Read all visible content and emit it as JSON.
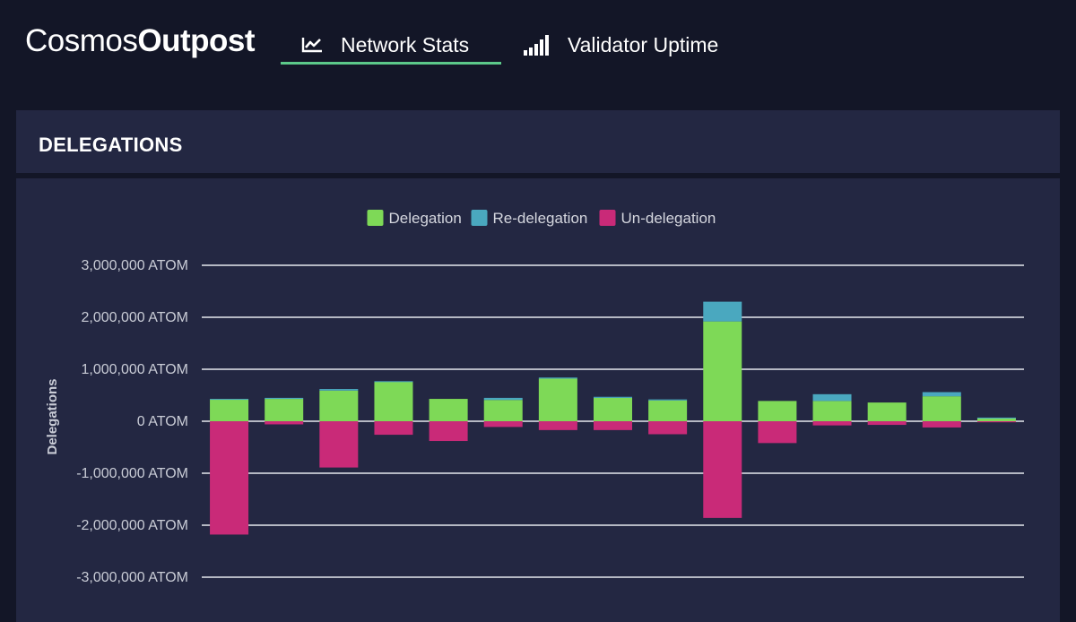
{
  "brand": {
    "part1": "Cosmos",
    "part2": "Outpost"
  },
  "nav": {
    "tabs": [
      {
        "label": "Network Stats",
        "icon": "line-chart-icon",
        "active": true
      },
      {
        "label": "Validator Uptime",
        "icon": "signal-bars-icon",
        "active": false
      }
    ],
    "accent_color": "#5cc98a"
  },
  "card": {
    "title": "DELEGATIONS"
  },
  "chart_data": {
    "type": "bar",
    "stacked": true,
    "ylabel": "Delegations",
    "ylim": [
      -3000000,
      3000000
    ],
    "y_ticks": [
      "3,000,000 ATOM",
      "2,000,000 ATOM",
      "1,000,000 ATOM",
      "0 ATOM",
      "-1,000,000 ATOM",
      "-2,000,000 ATOM",
      "-3,000,000 ATOM"
    ],
    "grid": true,
    "legend_position": "top-center",
    "series": [
      {
        "name": "Delegation",
        "color": "#7ed957",
        "values": [
          420000,
          430000,
          590000,
          760000,
          430000,
          410000,
          820000,
          450000,
          400000,
          1920000,
          390000,
          390000,
          360000,
          480000,
          60000
        ]
      },
      {
        "name": "Re-delegation",
        "color": "#4aa8bf",
        "values": [
          10000,
          20000,
          30000,
          10000,
          0,
          40000,
          20000,
          20000,
          20000,
          380000,
          0,
          130000,
          0,
          80000,
          10000
        ]
      },
      {
        "name": "Un-delegation",
        "color": "#c92a78",
        "values": [
          -2180000,
          -60000,
          -890000,
          -260000,
          -380000,
          -110000,
          -170000,
          -170000,
          -250000,
          -1860000,
          -420000,
          -80000,
          -70000,
          -120000,
          -20000
        ]
      }
    ]
  }
}
